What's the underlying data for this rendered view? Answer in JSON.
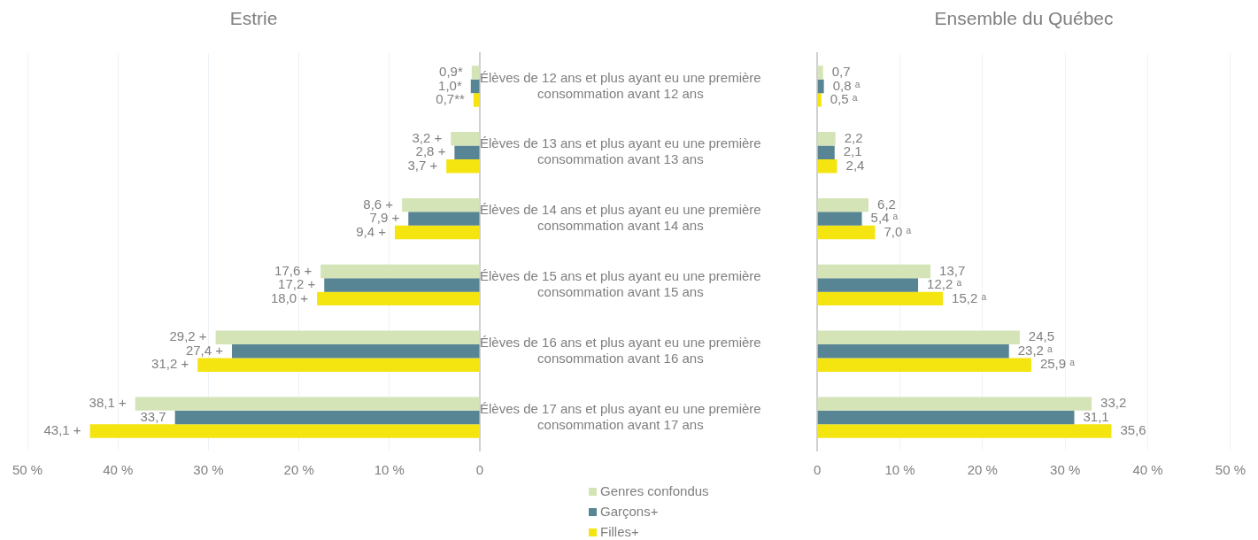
{
  "chart_data": [
    {
      "type": "bar",
      "orientation": "horizontal",
      "title": "Estrie",
      "categories": [
        "Élèves de 12 ans et plus ayant eu une première consommation avant 12 ans",
        "Élèves de 13 ans et plus ayant eu une première consommation avant 13 ans",
        "Élèves de 14 ans et plus ayant eu une première consommation avant 14 ans",
        "Élèves de 15 ans et plus ayant eu une première consommation avant 15 ans",
        "Élèves de 16 ans et plus ayant eu une première consommation avant 16 ans",
        "Élèves de 17 ans et plus ayant eu une première consommation avant 17 ans"
      ],
      "series": [
        {
          "name": "Genres confondus",
          "color": "#d4e4b7",
          "values": [
            0.9,
            3.2,
            8.6,
            17.6,
            29.2,
            38.1
          ],
          "value_labels": [
            "0,9*",
            "3,2 +",
            "8,6 +",
            "17,6 +",
            "29,2 +",
            "38,1 +"
          ]
        },
        {
          "name": "Garçons+",
          "color": "#588593",
          "values": [
            1.0,
            2.8,
            7.9,
            17.2,
            27.4,
            33.7
          ],
          "value_labels": [
            "1,0*",
            "2,8 +",
            "7,9 +",
            "17,2 +",
            "27,4 +",
            "33,7"
          ]
        },
        {
          "name": "Filles+",
          "color": "#f4e511",
          "values": [
            0.7,
            3.7,
            9.4,
            18.0,
            31.2,
            43.1
          ],
          "value_labels": [
            "0,7**",
            "3,7 +",
            "9,4 +",
            "18,0 +",
            "31,2 +",
            "43,1 +"
          ]
        }
      ],
      "xlim": [
        50,
        0
      ],
      "xticks": [
        {
          "value": 50,
          "label": "50 %"
        },
        {
          "value": 40,
          "label": "40 %"
        },
        {
          "value": 30,
          "label": "30 %"
        },
        {
          "value": 20,
          "label": "20 %"
        },
        {
          "value": 10,
          "label": "10 %"
        },
        0
      ],
      "grid": "x",
      "legend": "bottom"
    },
    {
      "type": "bar",
      "orientation": "horizontal",
      "title": "Ensemble du Québec",
      "categories": [
        null,
        null,
        null,
        null,
        null,
        null
      ],
      "series": [
        {
          "color": "#d4e4b7",
          "values": [
            0.7,
            2.2,
            6.2,
            13.7,
            24.5,
            33.2
          ],
          "value_labels": [
            "0,7",
            "2,2",
            "6,2",
            "13,7",
            "24,5",
            "33,2"
          ]
        },
        {
          "color": "#588593",
          "values": [
            0.8,
            2.1,
            5.4,
            12.2,
            23.2,
            31.1
          ],
          "value_labels": [
            "0,8 ᵃ",
            "2,1",
            "5,4 ᵃ",
            "12,2 ᵃ",
            "23,2 ᵃ",
            "31,1"
          ]
        },
        {
          "color": "#f4e511",
          "values": [
            0.5,
            2.4,
            7.0,
            15.2,
            25.9,
            35.6
          ],
          "value_labels": [
            "0,5 ᵃ",
            "2,4",
            "7,0 ᵃ",
            "15,2 ᵃ",
            "25,9 ᵃ",
            "35,6"
          ]
        }
      ],
      "xlim": [
        0,
        50
      ],
      "xticks": [
        0,
        {
          "value": 10,
          "label": "10 %"
        },
        {
          "value": 20,
          "label": "20 %"
        },
        {
          "value": 30,
          "label": "30 %"
        },
        {
          "value": 40,
          "label": "40 %"
        },
        {
          "value": 50,
          "label": "50 %"
        }
      ],
      "grid": "x"
    }
  ]
}
